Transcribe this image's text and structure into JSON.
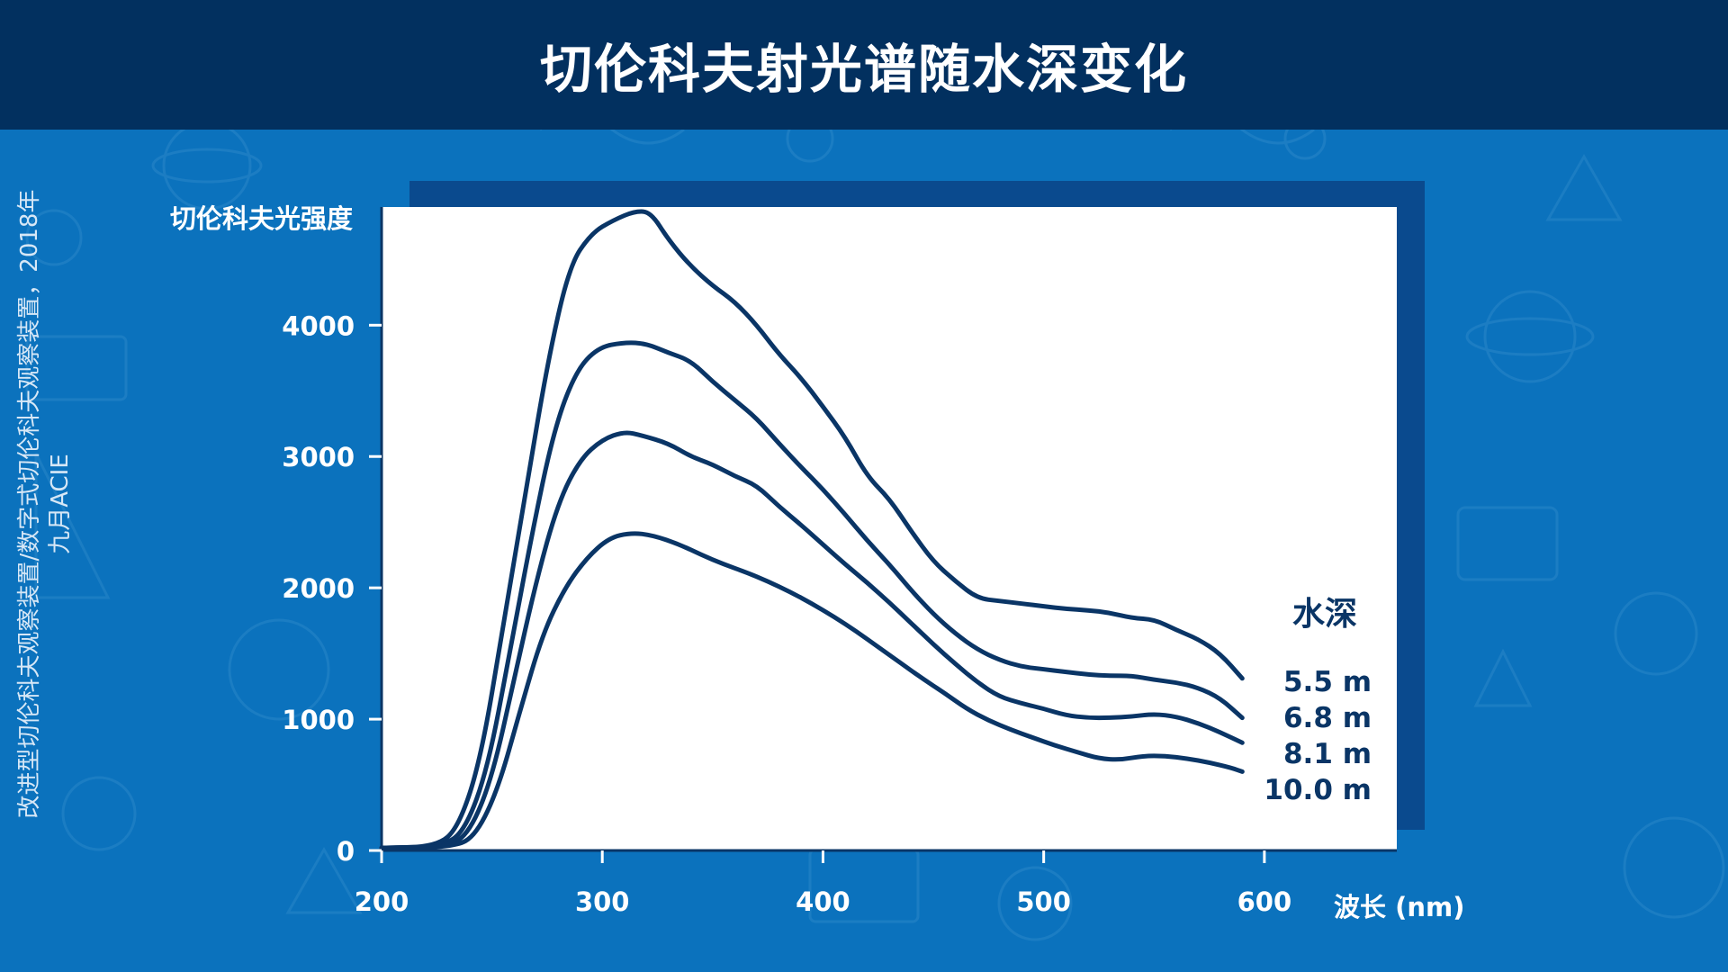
{
  "page": {
    "title": "切伦科夫射光谱随水深变化",
    "source_note": "改进型切伦科夫观察装置/数字式切伦科夫观察装置，2018年九月ACIE"
  },
  "colors": {
    "title_bar": "#02305f",
    "background": "#0b72bd",
    "plot_bg": "#ffffff",
    "line": "#0a3566",
    "text": "#ffffff"
  },
  "chart_data": {
    "type": "line",
    "ylabel": "切伦科夫光强度",
    "xlabel": "波长 (nm)",
    "xlim": [
      200,
      660
    ],
    "ylim": [
      0,
      4900
    ],
    "x_ticks": [
      "200",
      "300",
      "400",
      "500",
      "600"
    ],
    "y_ticks": [
      "0",
      "1000",
      "2000",
      "3000",
      "4000"
    ],
    "legend_title": "水深",
    "legend_placement": "right",
    "grid": false,
    "series": [
      {
        "name": "5.5 m",
        "points": [
          [
            200,
            20
          ],
          [
            225,
            30
          ],
          [
            235,
            180
          ],
          [
            245,
            700
          ],
          [
            255,
            1700
          ],
          [
            265,
            2700
          ],
          [
            275,
            3700
          ],
          [
            285,
            4450
          ],
          [
            295,
            4700
          ],
          [
            305,
            4800
          ],
          [
            315,
            4870
          ],
          [
            322,
            4860
          ],
          [
            330,
            4650
          ],
          [
            340,
            4450
          ],
          [
            350,
            4300
          ],
          [
            360,
            4180
          ],
          [
            370,
            4000
          ],
          [
            380,
            3780
          ],
          [
            390,
            3600
          ],
          [
            400,
            3380
          ],
          [
            410,
            3150
          ],
          [
            420,
            2850
          ],
          [
            430,
            2680
          ],
          [
            440,
            2430
          ],
          [
            450,
            2200
          ],
          [
            460,
            2050
          ],
          [
            470,
            1920
          ],
          [
            480,
            1900
          ],
          [
            490,
            1880
          ],
          [
            500,
            1860
          ],
          [
            510,
            1840
          ],
          [
            520,
            1830
          ],
          [
            530,
            1810
          ],
          [
            540,
            1770
          ],
          [
            550,
            1760
          ],
          [
            560,
            1680
          ],
          [
            570,
            1610
          ],
          [
            580,
            1500
          ],
          [
            590,
            1310
          ]
        ]
      },
      {
        "name": "6.8 m",
        "points": [
          [
            200,
            20
          ],
          [
            228,
            30
          ],
          [
            238,
            160
          ],
          [
            248,
            620
          ],
          [
            258,
            1500
          ],
          [
            268,
            2400
          ],
          [
            278,
            3200
          ],
          [
            288,
            3650
          ],
          [
            298,
            3830
          ],
          [
            310,
            3870
          ],
          [
            320,
            3860
          ],
          [
            330,
            3790
          ],
          [
            340,
            3730
          ],
          [
            350,
            3570
          ],
          [
            360,
            3430
          ],
          [
            370,
            3290
          ],
          [
            380,
            3100
          ],
          [
            390,
            2920
          ],
          [
            400,
            2750
          ],
          [
            410,
            2560
          ],
          [
            420,
            2360
          ],
          [
            430,
            2180
          ],
          [
            440,
            1980
          ],
          [
            450,
            1800
          ],
          [
            460,
            1650
          ],
          [
            470,
            1530
          ],
          [
            480,
            1450
          ],
          [
            490,
            1400
          ],
          [
            500,
            1380
          ],
          [
            510,
            1360
          ],
          [
            520,
            1340
          ],
          [
            530,
            1330
          ],
          [
            540,
            1330
          ],
          [
            550,
            1300
          ],
          [
            560,
            1280
          ],
          [
            570,
            1240
          ],
          [
            580,
            1160
          ],
          [
            590,
            1010
          ]
        ]
      },
      {
        "name": "8.1 m",
        "points": [
          [
            200,
            20
          ],
          [
            230,
            25
          ],
          [
            240,
            140
          ],
          [
            250,
            550
          ],
          [
            260,
            1300
          ],
          [
            270,
            2050
          ],
          [
            280,
            2650
          ],
          [
            290,
            2980
          ],
          [
            300,
            3130
          ],
          [
            310,
            3190
          ],
          [
            318,
            3160
          ],
          [
            330,
            3100
          ],
          [
            340,
            3000
          ],
          [
            350,
            2940
          ],
          [
            360,
            2850
          ],
          [
            370,
            2780
          ],
          [
            380,
            2620
          ],
          [
            390,
            2480
          ],
          [
            400,
            2330
          ],
          [
            410,
            2180
          ],
          [
            420,
            2040
          ],
          [
            430,
            1890
          ],
          [
            440,
            1730
          ],
          [
            450,
            1570
          ],
          [
            460,
            1420
          ],
          [
            470,
            1280
          ],
          [
            480,
            1170
          ],
          [
            490,
            1120
          ],
          [
            500,
            1080
          ],
          [
            510,
            1030
          ],
          [
            520,
            1010
          ],
          [
            530,
            1010
          ],
          [
            540,
            1020
          ],
          [
            550,
            1040
          ],
          [
            560,
            1020
          ],
          [
            570,
            970
          ],
          [
            580,
            900
          ],
          [
            590,
            820
          ]
        ]
      },
      {
        "name": "10.0 m",
        "points": [
          [
            200,
            20
          ],
          [
            233,
            25
          ],
          [
            243,
            120
          ],
          [
            253,
            480
          ],
          [
            263,
            1080
          ],
          [
            273,
            1650
          ],
          [
            283,
            2000
          ],
          [
            293,
            2230
          ],
          [
            303,
            2380
          ],
          [
            313,
            2420
          ],
          [
            323,
            2400
          ],
          [
            335,
            2330
          ],
          [
            345,
            2250
          ],
          [
            355,
            2180
          ],
          [
            365,
            2120
          ],
          [
            375,
            2050
          ],
          [
            385,
            1970
          ],
          [
            395,
            1880
          ],
          [
            405,
            1780
          ],
          [
            415,
            1670
          ],
          [
            425,
            1550
          ],
          [
            435,
            1430
          ],
          [
            445,
            1310
          ],
          [
            455,
            1200
          ],
          [
            465,
            1080
          ],
          [
            475,
            990
          ],
          [
            485,
            920
          ],
          [
            495,
            860
          ],
          [
            505,
            800
          ],
          [
            515,
            750
          ],
          [
            525,
            700
          ],
          [
            535,
            690
          ],
          [
            545,
            720
          ],
          [
            555,
            720
          ],
          [
            565,
            700
          ],
          [
            575,
            670
          ],
          [
            585,
            630
          ],
          [
            590,
            600
          ]
        ]
      }
    ]
  }
}
